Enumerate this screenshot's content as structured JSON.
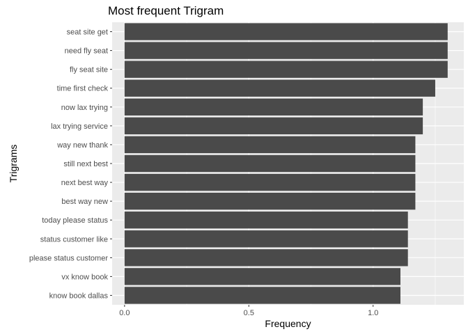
{
  "chart_data": {
    "type": "bar",
    "orientation": "horizontal",
    "title": "Most frequent Trigram",
    "xlabel": "Frequency",
    "ylabel": "Trigrams",
    "categories": [
      "seat site get",
      "need fly seat",
      "fly seat site",
      "time first check",
      "now lax trying",
      "lax trying service",
      "way new thank",
      "still next best",
      "next best way",
      "best way new",
      "today please status",
      "status customer like",
      "please status customer",
      "vx know book",
      "know book dallas"
    ],
    "values": [
      1.3,
      1.3,
      1.3,
      1.25,
      1.2,
      1.2,
      1.17,
      1.17,
      1.17,
      1.17,
      1.14,
      1.14,
      1.14,
      1.11,
      1.11
    ],
    "xlim": [
      -0.05,
      1.365
    ],
    "xticks": [
      0.0,
      0.5,
      1.0
    ],
    "xtick_labels": [
      "0.0",
      "0.5",
      "1.0"
    ],
    "grid": true,
    "legend": "none",
    "colors": {
      "bar": "#4a4a4a",
      "panel": "#ebebeb",
      "grid": "#ffffff"
    }
  }
}
